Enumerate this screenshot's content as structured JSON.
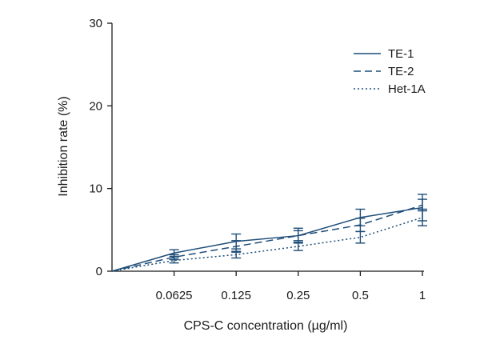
{
  "chart_data": {
    "type": "line",
    "title": "",
    "xlabel": "CPS-C concentration (µg/ml)",
    "ylabel": "Inhibition rate (%)",
    "categories": [
      "0",
      "0.0625",
      "0.125",
      "0.25",
      "0.5",
      "1"
    ],
    "x_tick_labels": [
      "0.0625",
      "0.125",
      "0.25",
      "0.5",
      "1"
    ],
    "y_ticks": [
      0,
      10,
      20,
      30
    ],
    "y_tick_labels": [
      "0",
      "10",
      "20",
      "30"
    ],
    "ylim": [
      0,
      30
    ],
    "grid": false,
    "legend_position": "top-right",
    "series": [
      {
        "name": "TE-1",
        "style": "solid",
        "values": [
          0,
          2.2,
          3.6,
          4.3,
          6.5,
          7.7
        ],
        "errors": [
          0,
          0.4,
          0.9,
          0.9,
          1.0,
          1.6
        ]
      },
      {
        "name": "TE-2",
        "style": "dashed",
        "values": [
          0,
          1.7,
          3.0,
          4.3,
          5.6,
          8.0
        ],
        "errors": [
          0,
          0.3,
          0.7,
          0.6,
          0.8,
          0.7
        ]
      },
      {
        "name": "Het-1A",
        "style": "dotted",
        "values": [
          0,
          1.3,
          2.0,
          3.0,
          4.1,
          6.5
        ],
        "errors": [
          0,
          0.3,
          0.4,
          0.5,
          0.7,
          1.0
        ]
      }
    ],
    "colors": {
      "line": "#1f4e79",
      "axis": "#1a1a1a"
    }
  }
}
